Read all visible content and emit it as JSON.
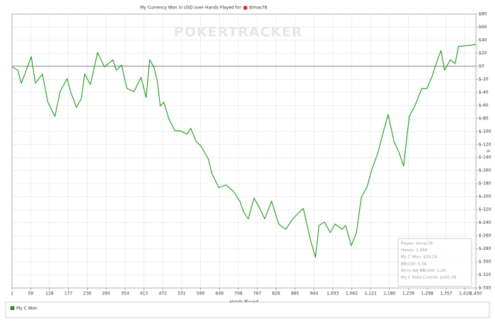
{
  "chart_data": {
    "type": "line",
    "title": "My Currency Won in USD over Hands Played for",
    "title_player": "dimas78",
    "watermark": "POKERTRACKER",
    "x_label": "Hands Played",
    "y_label": "$",
    "grid": true,
    "xlim": [
      1,
      1450
    ],
    "ylim": [
      -340,
      80
    ],
    "xticks": [
      1,
      59,
      118,
      177,
      236,
      295,
      354,
      413,
      472,
      531,
      590,
      649,
      708,
      767,
      826,
      885,
      944,
      {
        "value": 1003,
        "label": "1,003"
      },
      {
        "value": 1062,
        "label": "1,062"
      },
      {
        "value": 1121,
        "label": "1,121"
      },
      {
        "value": 1180,
        "label": "1,180"
      },
      {
        "value": 1239,
        "label": "1,239"
      },
      {
        "value": 1298,
        "label": "1,298"
      },
      {
        "value": 1357,
        "label": "1,357"
      },
      {
        "value": 1416,
        "label": "1,416"
      },
      {
        "value": 1450,
        "label": "1,450"
      }
    ],
    "yticks": [
      {
        "value": 80,
        "label": "$80"
      },
      {
        "value": 60,
        "label": "$60"
      },
      {
        "value": 40,
        "label": "$40"
      },
      {
        "value": 20,
        "label": "$20"
      },
      {
        "value": 0,
        "label": "$0"
      },
      {
        "value": -20,
        "label": "$-20"
      },
      {
        "value": -40,
        "label": "$-40"
      },
      {
        "value": -60,
        "label": "$-60"
      },
      {
        "value": -80,
        "label": "$-80"
      },
      {
        "value": -100,
        "label": "$-100"
      },
      {
        "value": -120,
        "label": "$-120"
      },
      {
        "value": -140,
        "label": "$-140"
      },
      {
        "value": -160,
        "label": "$-160"
      },
      {
        "value": -180,
        "label": "$-180"
      },
      {
        "value": -200,
        "label": "$-200"
      },
      {
        "value": -220,
        "label": "$-220"
      },
      {
        "value": -240,
        "label": "$-240"
      },
      {
        "value": -260,
        "label": "$-260"
      },
      {
        "value": -280,
        "label": "$-280"
      },
      {
        "value": -300,
        "label": "$-300"
      },
      {
        "value": -320,
        "label": "$-320"
      },
      {
        "value": -340,
        "label": "$-340"
      }
    ],
    "x": [
      1,
      19,
      30,
      41,
      61,
      74,
      96,
      113,
      135,
      151,
      173,
      184,
      202,
      217,
      228,
      246,
      268,
      290,
      316,
      327,
      343,
      360,
      382,
      404,
      420,
      431,
      444,
      455,
      464,
      475,
      492,
      510,
      526,
      548,
      559,
      576,
      592,
      614,
      625,
      647,
      669,
      691,
      713,
      724,
      739,
      757,
      775,
      790,
      812,
      834,
      856,
      878,
      900,
      911,
      933,
      949,
      960,
      977,
      995,
      1010,
      1032,
      1043,
      1061,
      1077,
      1092,
      1110,
      1125,
      1143,
      1165,
      1176,
      1194,
      1209,
      1224,
      1242,
      1259,
      1281,
      1297,
      1312,
      1330,
      1341,
      1352,
      1370,
      1385,
      1396,
      1407,
      1450
    ],
    "series": [
      {
        "name": "My C Won",
        "color": "#1a9a1a",
        "values": [
          -1,
          -6,
          -26,
          -12,
          15,
          -26,
          -12,
          -55,
          -77,
          -39,
          -19,
          -39,
          -63,
          -50,
          -12,
          -28,
          21,
          -1,
          10,
          -6,
          2,
          -34,
          -39,
          -17,
          -48,
          10,
          -1,
          -23,
          -61,
          -55,
          -82,
          -99,
          -99,
          -104,
          -95,
          -115,
          -123,
          -142,
          -164,
          -186,
          -182,
          -191,
          -207,
          -223,
          -234,
          -202,
          -218,
          -234,
          -207,
          -242,
          -250,
          -234,
          -223,
          -218,
          -266,
          -293,
          -244,
          -239,
          -255,
          -242,
          -250,
          -244,
          -275,
          -255,
          -201,
          -185,
          -158,
          -134,
          -93,
          -74,
          -115,
          -131,
          -153,
          -77,
          -61,
          -34,
          -34,
          -17,
          10,
          24,
          -6,
          10,
          4,
          31,
          31,
          33.24
        ]
      }
    ],
    "annotations": [
      "Player: dimas78",
      "Hands: 1,450",
      "My C Won: $33.24",
      "BB/100: 0.56",
      "All-In Adj BB/100: 1.28",
      "My C Rake Contrib: $165.08"
    ]
  }
}
